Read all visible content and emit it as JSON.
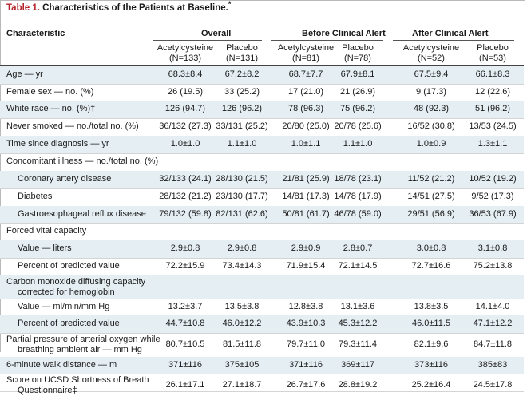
{
  "table": {
    "number": "Table 1.",
    "title": "Characteristics of the Patients at Baseline.",
    "footnote_mark": "*"
  },
  "headers": {
    "characteristic": "Characteristic",
    "groups": [
      "Overall",
      "Before Clinical Alert",
      "After Clinical Alert"
    ],
    "arms": [
      {
        "name": "Acetylcysteine",
        "n": "(N=133)"
      },
      {
        "name": "Placebo",
        "n": "(N=131)"
      },
      {
        "name": "Acetylcysteine",
        "n": "(N=81)"
      },
      {
        "name": "Placebo",
        "n": "(N=78)"
      },
      {
        "name": "Acetylcysteine",
        "n": "(N=52)"
      },
      {
        "name": "Placebo",
        "n": "(N=53)"
      }
    ]
  },
  "rows": [
    {
      "label": "Age — yr",
      "values": [
        "68.3±8.4",
        "67.2±8.2",
        "68.7±7.7",
        "67.9±8.1",
        "67.5±9.4",
        "66.1±8.3"
      ]
    },
    {
      "label": "Female sex — no. (%)",
      "values": [
        "26 (19.5)",
        "33 (25.2)",
        "17 (21.0)",
        "21 (26.9)",
        "9 (17.3)",
        "12 (22.6)"
      ]
    },
    {
      "label": "White race — no. (%)†",
      "values": [
        "126 (94.7)",
        "126 (96.2)",
        "78 (96.3)",
        "75 (96.2)",
        "48 (92.3)",
        "51 (96.2)"
      ]
    },
    {
      "label": "Never smoked — no./total no. (%)",
      "values": [
        "36/132 (27.3)",
        "33/131 (25.2)",
        "20/80 (25.0)",
        "20/78 (25.6)",
        "16/52 (30.8)",
        "13/53 (24.5)"
      ]
    },
    {
      "label": "Time since diagnosis — yr",
      "values": [
        "1.0±1.0",
        "1.1±1.0",
        "1.0±1.1",
        "1.1±1.0",
        "1.0±0.9",
        "1.3±1.1"
      ]
    },
    {
      "label": "Concomitant illness — no./total no. (%)",
      "values": []
    },
    {
      "label": "Coronary artery disease",
      "values": [
        "32/133 (24.1)",
        "28/130 (21.5)",
        "21/81 (25.9)",
        "18/78 (23.1)",
        "11/52 (21.2)",
        "10/52 (19.2)"
      ]
    },
    {
      "label": "Diabetes",
      "values": [
        "28/132 (21.2)",
        "23/130 (17.7)",
        "14/81 (17.3)",
        "14/78 (17.9)",
        "14/51 (27.5)",
        "9/52 (17.3)"
      ]
    },
    {
      "label": "Gastroesophageal reflux disease",
      "values": [
        "79/132 (59.8)",
        "82/131 (62.6)",
        "50/81 (61.7)",
        "46/78 (59.0)",
        "29/51 (56.9)",
        "36/53 (67.9)"
      ]
    },
    {
      "label": "Forced vital capacity",
      "values": []
    },
    {
      "label": "Value — liters",
      "values": [
        "2.9±0.8",
        "2.9±0.8",
        "2.9±0.9",
        "2.8±0.7",
        "3.0±0.8",
        "3.1±0.8"
      ]
    },
    {
      "label": "Percent of predicted value",
      "values": [
        "72.2±15.9",
        "73.4±14.3",
        "71.9±15.4",
        "72.1±14.5",
        "72.7±16.6",
        "75.2±13.8"
      ]
    },
    {
      "label": "Carbon monoxide diffusing capacity",
      "label2": "corrected for hemoglobin",
      "values": []
    },
    {
      "label": "Value — ml/min/mm Hg",
      "values": [
        "13.2±3.7",
        "13.5±3.8",
        "12.8±3.8",
        "13.1±3.6",
        "13.8±3.5",
        "14.1±4.0"
      ]
    },
    {
      "label": "Percent of predicted value",
      "values": [
        "44.7±10.8",
        "46.0±12.2",
        "43.9±10.3",
        "45.3±12.2",
        "46.0±11.5",
        "47.1±12.2"
      ]
    },
    {
      "label": "Partial pressure of arterial oxygen while",
      "label2": "breathing ambient air — mm Hg",
      "values": [
        "80.7±10.5",
        "81.5±11.8",
        "79.7±11.0",
        "79.3±11.4",
        "82.1±9.6",
        "84.7±11.8"
      ]
    },
    {
      "label": "6-minute walk distance — m",
      "values": [
        "371±116",
        "375±105",
        "371±116",
        "369±117",
        "373±116",
        "385±83"
      ]
    },
    {
      "label": "Score on UCSD Shortness of Breath",
      "label2": "Questionnaire‡",
      "values": [
        "26.1±17.1",
        "27.1±18.7",
        "26.7±17.6",
        "28.8±19.2",
        "25.2±16.4",
        "24.5±17.8"
      ]
    }
  ]
}
